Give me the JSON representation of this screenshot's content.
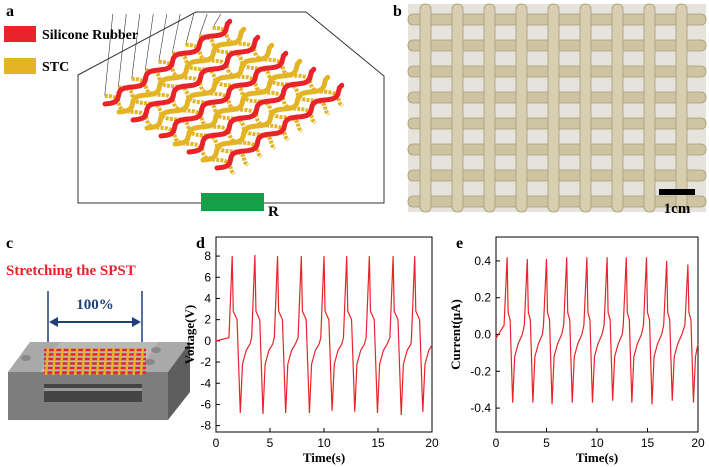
{
  "panels": {
    "a": {
      "label": "a",
      "legend": [
        {
          "name": "Silicone Rubber",
          "color": "#e8232a"
        },
        {
          "name": "STC",
          "color": "#e3b526"
        }
      ],
      "resistor": "R"
    },
    "b": {
      "label": "b",
      "scale_bar": "1cm"
    },
    "c": {
      "label": "c",
      "caption": "Stretching the SPST",
      "strain": "100%"
    }
  },
  "chart_data": [
    {
      "type": "line",
      "label": "d",
      "xlabel": "Time(s)",
      "ylabel": "Voltage(V)",
      "color": "#e8232a",
      "xlim": [
        0,
        20
      ],
      "xticks": [
        0,
        5,
        10,
        15,
        20
      ],
      "ylim": [
        -8.6,
        9.8
      ],
      "yticks": [
        -8,
        -6,
        -4,
        -2,
        0,
        2,
        4,
        6,
        8
      ],
      "x": [
        0,
        1.2,
        1.5,
        1.6,
        1.95,
        2.25,
        2.45,
        2.8,
        3.15,
        3.3,
        3.6,
        3.7,
        4.05,
        4.35,
        4.55,
        4.9,
        5.25,
        5.4,
        5.7,
        5.8,
        6.15,
        6.45,
        6.65,
        7.0,
        7.35,
        7.6,
        7.9,
        8.0,
        8.35,
        8.65,
        8.85,
        9.2,
        9.55,
        9.7,
        10.0,
        10.1,
        10.45,
        10.75,
        10.95,
        11.3,
        11.65,
        11.8,
        12.1,
        12.2,
        12.55,
        12.85,
        13.05,
        13.4,
        13.75,
        13.9,
        14.2,
        14.3,
        14.65,
        14.95,
        15.15,
        15.5,
        15.85,
        16.1,
        16.4,
        16.5,
        16.85,
        17.15,
        17.35,
        17.7,
        18.05,
        18.1,
        18.4,
        18.5,
        18.85,
        19.15,
        19.35,
        19.7,
        20.0
      ],
      "values": [
        0,
        0.3,
        8.0,
        2.8,
        2.0,
        -6.8,
        -2.2,
        -0.9,
        -0.3,
        0.3,
        8.1,
        2.8,
        2.0,
        -6.9,
        -2.2,
        -0.9,
        -0.3,
        0.3,
        8.0,
        2.8,
        2.0,
        -6.8,
        -2.2,
        -0.9,
        -0.3,
        0.3,
        8.0,
        2.8,
        2.0,
        -6.8,
        -2.2,
        -0.9,
        -0.3,
        0.3,
        8.0,
        2.8,
        2.0,
        -6.6,
        -2.2,
        -0.9,
        -0.3,
        0.3,
        8.0,
        2.8,
        2.0,
        -6.7,
        -2.2,
        -0.9,
        -0.3,
        0.3,
        8.0,
        2.8,
        2.0,
        -6.8,
        -2.2,
        -0.9,
        -0.3,
        0.3,
        8.0,
        2.8,
        2.0,
        -7.0,
        -2.2,
        -0.9,
        -0.3,
        0.3,
        8.0,
        2.8,
        2.0,
        -6.7,
        -2.2,
        -0.9,
        -0.4
      ]
    },
    {
      "type": "line",
      "label": "e",
      "xlabel": "Time(s)",
      "ylabel": "Current(μA)",
      "color": "#e8232a",
      "xlim": [
        0,
        20
      ],
      "xticks": [
        0,
        5,
        10,
        15,
        20
      ],
      "ylim": [
        -0.53,
        0.53
      ],
      "yticks": [
        -0.4,
        -0.2,
        {
          "value": 0,
          "label": "0.0"
        },
        0.2,
        0.4
      ],
      "x": [
        0,
        0.8,
        1.1,
        1.2,
        1.4,
        1.65,
        1.85,
        2.2,
        2.6,
        2.8,
        3.1,
        3.2,
        3.4,
        3.65,
        3.85,
        4.2,
        4.6,
        4.7,
        5.0,
        5.1,
        5.3,
        5.55,
        5.75,
        6.1,
        6.5,
        6.7,
        7.0,
        7.1,
        7.3,
        7.55,
        7.75,
        8.1,
        8.5,
        8.7,
        9.0,
        9.1,
        9.3,
        9.55,
        9.75,
        10.1,
        10.5,
        10.7,
        11.0,
        11.1,
        11.3,
        11.55,
        11.75,
        12.1,
        12.5,
        12.6,
        12.9,
        13.0,
        13.2,
        13.45,
        13.65,
        14.0,
        14.4,
        14.6,
        14.9,
        15.0,
        15.2,
        15.45,
        15.65,
        16.0,
        16.4,
        16.6,
        16.9,
        17.0,
        17.2,
        17.45,
        17.65,
        18.0,
        18.4,
        18.7,
        19.0,
        19.1,
        19.3,
        19.55,
        19.75,
        20.0
      ],
      "values": [
        -0.02,
        0.05,
        0.42,
        0.12,
        0.08,
        -0.37,
        -0.12,
        -0.05,
        0.0,
        0.05,
        0.41,
        0.12,
        0.08,
        -0.37,
        -0.12,
        -0.05,
        0.0,
        0.05,
        0.41,
        0.12,
        0.08,
        -0.38,
        -0.12,
        -0.05,
        0.0,
        0.05,
        0.42,
        0.12,
        0.08,
        -0.37,
        -0.12,
        -0.05,
        0.0,
        0.05,
        0.42,
        0.12,
        0.08,
        -0.37,
        -0.12,
        -0.05,
        0.0,
        0.05,
        0.42,
        0.12,
        0.08,
        -0.36,
        -0.12,
        -0.05,
        0.0,
        0.05,
        0.42,
        0.12,
        0.08,
        -0.37,
        -0.12,
        -0.05,
        0.0,
        0.05,
        0.42,
        0.12,
        0.08,
        -0.38,
        -0.12,
        -0.05,
        0.0,
        0.05,
        0.4,
        0.12,
        0.08,
        -0.36,
        -0.12,
        -0.05,
        0.0,
        0.05,
        0.38,
        0.12,
        0.08,
        -0.37,
        -0.12,
        -0.05
      ]
    }
  ]
}
